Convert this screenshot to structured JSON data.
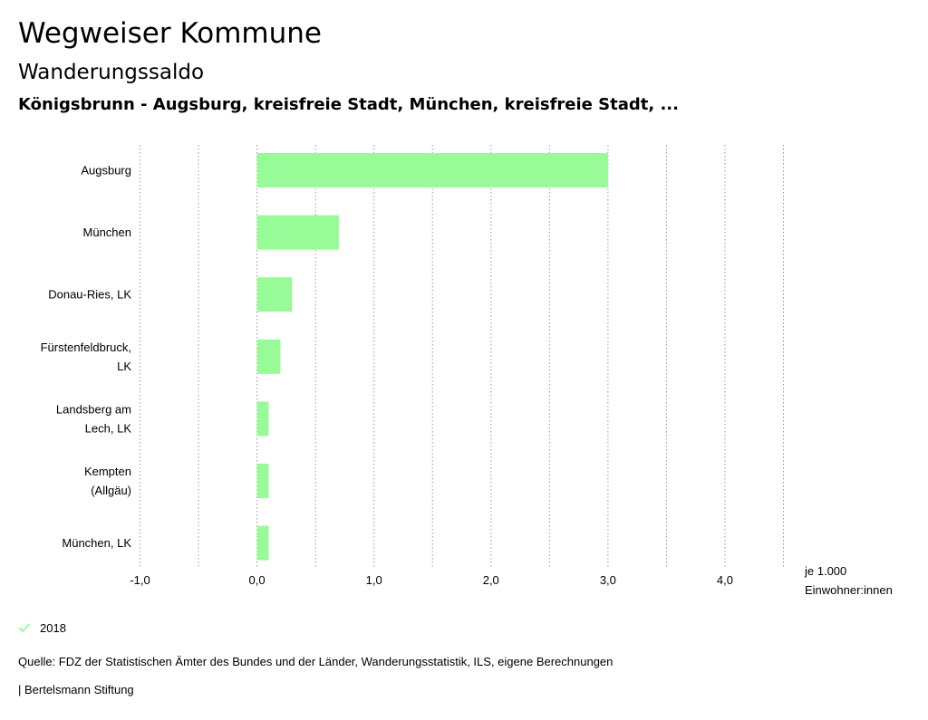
{
  "header": {
    "title": "Wegweiser Kommune",
    "subtitle": "Wanderungssaldo",
    "location": "Königsbrunn - Augsburg, kreisfreie Stadt, München, kreisfreie Stadt, ..."
  },
  "chart_data": {
    "type": "bar",
    "orientation": "horizontal",
    "categories": [
      [
        "Augsburg"
      ],
      [
        "München"
      ],
      [
        "Donau-Ries, LK"
      ],
      [
        "Fürstenfeldbruck,",
        "LK"
      ],
      [
        "Landsberg am",
        "Lech, LK"
      ],
      [
        "Kempten",
        "(Allgäu)"
      ],
      [
        "München, LK"
      ]
    ],
    "series": [
      {
        "name": "2018",
        "values": [
          3.0,
          0.7,
          0.3,
          0.2,
          0.1,
          0.1,
          0.1
        ],
        "color": "#98fb98"
      }
    ],
    "xlim": [
      -1.0,
      4.5
    ],
    "xticks": [
      -1.0,
      0.0,
      1.0,
      2.0,
      3.0,
      4.0
    ],
    "xtick_labels": [
      "-1,0",
      "0,0",
      "1,0",
      "2,0",
      "3,0",
      "4,0"
    ],
    "x_minor_gridlines": [
      -0.5,
      0.5,
      1.5,
      2.5,
      3.5,
      4.5
    ],
    "unit_label": [
      "je 1.000",
      "Einwohner:innen"
    ],
    "grid": true,
    "legend_position": "bottom-left"
  },
  "legend": {
    "label": "2018",
    "color": "#98fb98"
  },
  "footer": {
    "source": "Quelle: FDZ der Statistischen Ämter des Bundes und der Länder, Wanderungsstatistik, ILS, eigene Berechnungen",
    "credit": "| Bertelsmann Stiftung"
  }
}
